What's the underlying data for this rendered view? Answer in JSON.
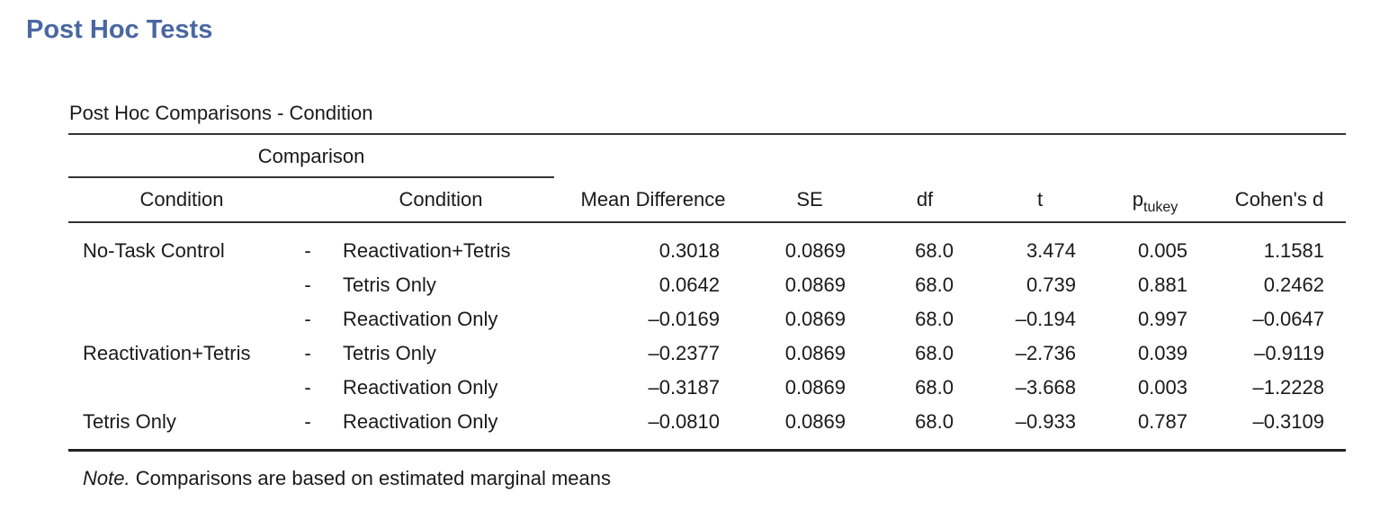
{
  "section_title": "Post Hoc Tests",
  "table": {
    "caption": "Post Hoc Comparisons - Condition",
    "group_header": "Comparison",
    "headers": {
      "condition1": "Condition",
      "condition2": "Condition",
      "mean_difference": "Mean Difference",
      "se": "SE",
      "df": "df",
      "t": "t",
      "p_main": "p",
      "p_sub": "tukey",
      "cohens_d": "Cohen's d"
    },
    "rows": [
      {
        "condition1": "No-Task Control",
        "sep": "-",
        "condition2": "Reactivation+Tetris",
        "mean_difference": "0.3018",
        "se": "0.0869",
        "df": "68.0",
        "t": "3.474",
        "p": "0.005",
        "cohens_d": "1.1581"
      },
      {
        "condition1": "",
        "sep": "-",
        "condition2": "Tetris Only",
        "mean_difference": "0.0642",
        "se": "0.0869",
        "df": "68.0",
        "t": "0.739",
        "p": "0.881",
        "cohens_d": "0.2462"
      },
      {
        "condition1": "",
        "sep": "-",
        "condition2": "Reactivation Only",
        "mean_difference": "–0.0169",
        "se": "0.0869",
        "df": "68.0",
        "t": "–0.194",
        "p": "0.997",
        "cohens_d": "–0.0647"
      },
      {
        "condition1": "Reactivation+Tetris",
        "sep": "-",
        "condition2": "Tetris Only",
        "mean_difference": "–0.2377",
        "se": "0.0869",
        "df": "68.0",
        "t": "–2.736",
        "p": "0.039",
        "cohens_d": "–0.9119"
      },
      {
        "condition1": "",
        "sep": "-",
        "condition2": "Reactivation Only",
        "mean_difference": "–0.3187",
        "se": "0.0869",
        "df": "68.0",
        "t": "–3.668",
        "p": "0.003",
        "cohens_d": "–1.2228"
      },
      {
        "condition1": "Tetris Only",
        "sep": "-",
        "condition2": "Reactivation Only",
        "mean_difference": "–0.0810",
        "se": "0.0869",
        "df": "68.0",
        "t": "–0.933",
        "p": "0.787",
        "cohens_d": "–0.3109"
      }
    ],
    "note_label": "Note.",
    "note_text": " Comparisons are based on estimated marginal means"
  }
}
